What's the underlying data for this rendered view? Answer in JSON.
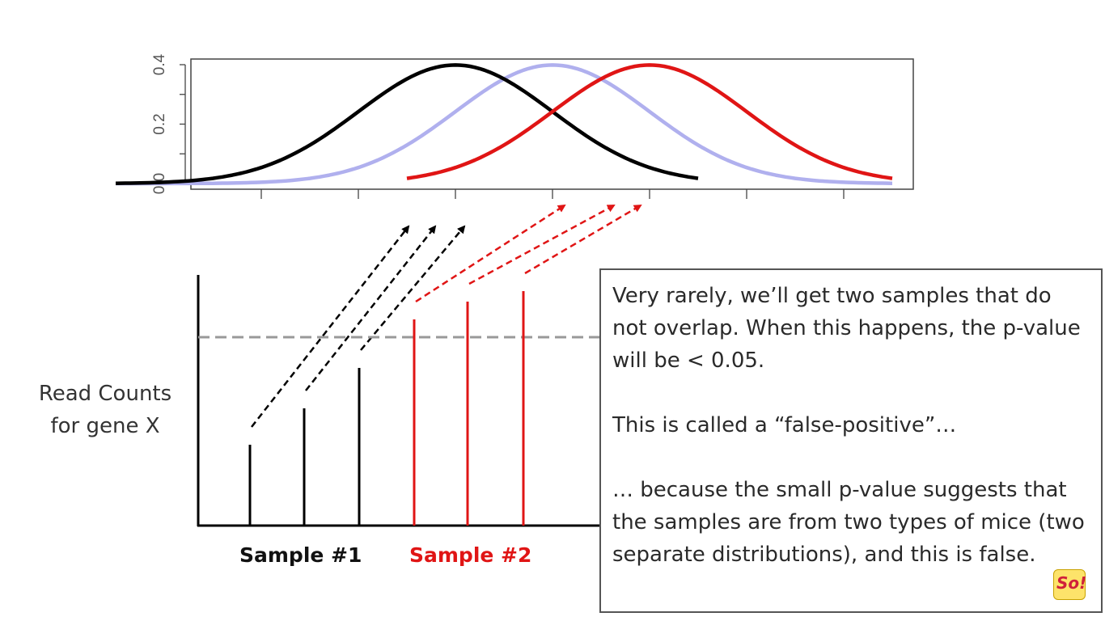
{
  "chart_data": [
    {
      "type": "line",
      "y_ticks": [
        "0.0",
        "0.2",
        "0.4"
      ],
      "ylim": [
        0,
        0.4
      ],
      "series": [
        {
          "color": "#000000",
          "mean": 0,
          "sd": 1,
          "x_range": [
            -3.5,
            2.5
          ]
        },
        {
          "color": "#b0b0ee",
          "mean": 1,
          "sd": 1,
          "x_range": [
            -3.5,
            4.5
          ]
        },
        {
          "color": "#e01515",
          "mean": 2,
          "sd": 1,
          "x_range": [
            -0.5,
            4.5
          ]
        }
      ],
      "grid": false
    },
    {
      "type": "bar",
      "ylabel": "Read Counts for gene X",
      "groups": [
        {
          "label": "Sample #1",
          "color": "#000000",
          "values": [
            100,
            145,
            195
          ]
        },
        {
          "label": "Sample #2",
          "color": "#e01515",
          "values": [
            255,
            277,
            290
          ]
        }
      ],
      "threshold_line": 233
    }
  ],
  "textbox": {
    "p1": "Very rarely, we’ll get two samples that do not overlap. When this happens, the p-value will be < 0.05.",
    "p2": "This is called a “false-positive”…",
    "p3": "… because the small p-value suggests that the samples are from two types of mice (two separate distributions), and this is false."
  },
  "logo_text": "So!"
}
